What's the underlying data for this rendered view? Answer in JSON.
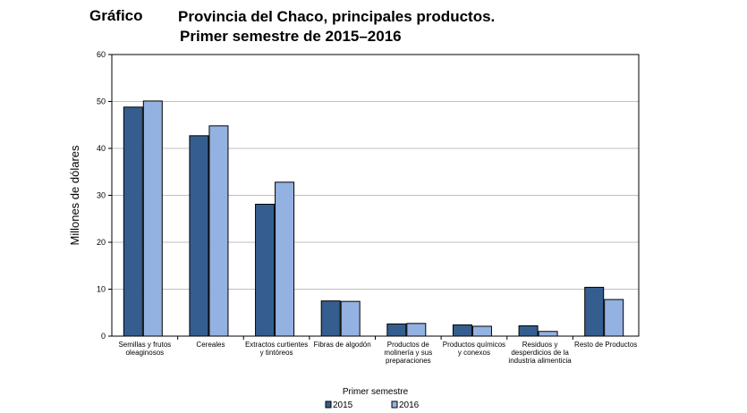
{
  "header": {
    "label": "Gráfico",
    "title_line1": "Provincia del Chaco, principales productos.",
    "title_line2": "Primer semestre de 2015–2016"
  },
  "chart_data": {
    "type": "bar",
    "xlabel": "Primer semestre",
    "ylabel": "Millones de dólares",
    "ylim": [
      0,
      60
    ],
    "yticks": [
      0,
      10,
      20,
      30,
      40,
      50,
      60
    ],
    "grid": true,
    "legend_position": "bottom",
    "categories": [
      [
        "Semillas y frutos",
        "oleaginosos"
      ],
      [
        "Cereales"
      ],
      [
        "Extractos curtientes",
        "y tintóreos"
      ],
      [
        "Fibras de algodón"
      ],
      [
        "Productos de",
        "molinería y sus",
        "preparaciones"
      ],
      [
        "Productos químicos",
        "y conexos"
      ],
      [
        "Residuos y",
        "desperdicios de la",
        "industria alimenticia"
      ],
      [
        "Resto de Productos"
      ]
    ],
    "series": [
      {
        "name": "2015",
        "color": "#355e8f",
        "values": [
          48.8,
          42.7,
          28.1,
          7.5,
          2.6,
          2.4,
          2.2,
          10.4
        ]
      },
      {
        "name": "2016",
        "color": "#93b2e1",
        "values": [
          50.1,
          44.8,
          32.8,
          7.4,
          2.7,
          2.1,
          1.0,
          7.8
        ]
      }
    ]
  }
}
